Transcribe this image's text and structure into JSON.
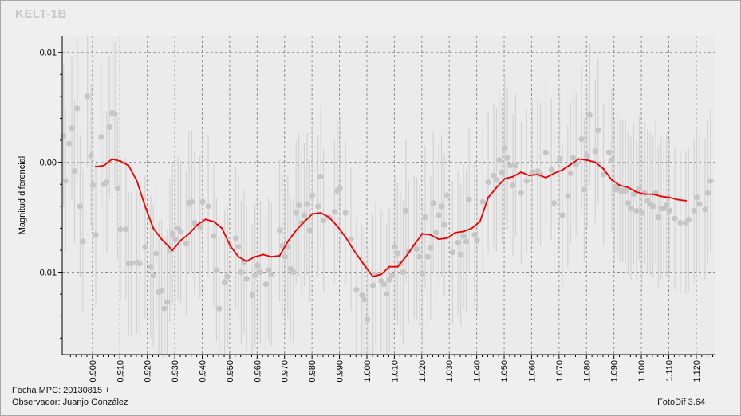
{
  "footer": {
    "date": "Fecha MPC: 20130815 +",
    "observer": "Observador: Juanjo González",
    "software": "FotoDif 3.64"
  },
  "colors": {
    "background": "#efefef",
    "plot_background": "#ebebeb",
    "grid": "#8c8c8c",
    "points": "#c6c6c6",
    "error_bars": "#d2d2d2",
    "fit_line": "#ee0000"
  },
  "chart_data": {
    "type": "scatter",
    "title": "KELT-1B",
    "xlabel": "",
    "ylabel": "Magnitud diferencial",
    "xlim": [
      0.889,
      1.127
    ],
    "ylim": [
      -0.0115,
      0.0175
    ],
    "y_inverted": true,
    "grid": true,
    "legend": "none",
    "x_ticks": [
      0.9,
      0.91,
      0.92,
      0.93,
      0.94,
      0.95,
      0.96,
      0.97,
      0.98,
      0.99,
      1.0,
      1.01,
      1.02,
      1.03,
      1.04,
      1.05,
      1.06,
      1.07,
      1.08,
      1.09,
      1.1,
      1.11,
      1.12
    ],
    "x_tick_labels": [
      "0.900",
      "0.910",
      "0.920",
      "0.930",
      "0.940",
      "0.950",
      "0.960",
      "0.970",
      "0.980",
      "0.990",
      "1.000",
      "1.010",
      "1.020",
      "1.030",
      "1.040",
      "1.050",
      "1.060",
      "1.070",
      "1.080",
      "1.090",
      "1.100",
      "1.110",
      "1.120"
    ],
    "y_ticks": [
      -0.01,
      0.0,
      0.01
    ],
    "y_tick_labels": [
      "-0.01",
      "0.00",
      "0.01"
    ],
    "series": [
      {
        "type": "scatter",
        "error": 0.0065,
        "points": [
          [
            0.8895,
            -0.0024
          ],
          [
            0.8902,
            0.0017
          ],
          [
            0.8915,
            -0.0017
          ],
          [
            0.8925,
            -0.0031
          ],
          [
            0.8935,
            0.0008
          ],
          [
            0.8945,
            -0.0049
          ],
          [
            0.8955,
            0.004
          ],
          [
            0.8965,
            0.0072
          ],
          [
            0.8982,
            -0.006
          ],
          [
            0.8995,
            -0.0006
          ],
          [
            0.9002,
            0.0021
          ],
          [
            0.9012,
            0.0066
          ],
          [
            0.9032,
            -0.0023
          ],
          [
            0.9042,
            0.002
          ],
          [
            0.9052,
            0.0018
          ],
          [
            0.9062,
            -0.0032
          ],
          [
            0.9072,
            -0.0045
          ],
          [
            0.9082,
            -0.0044
          ],
          [
            0.9092,
            0.0024
          ],
          [
            0.9102,
            0.0061
          ],
          [
            0.9122,
            0.0061
          ],
          [
            0.9132,
            0.0092
          ],
          [
            0.9142,
            0.0092
          ],
          [
            0.9162,
            0.0091
          ],
          [
            0.9172,
            0.0092
          ],
          [
            0.9192,
            0.0077
          ],
          [
            0.9212,
            0.0095
          ],
          [
            0.9222,
            0.0103
          ],
          [
            0.9232,
            0.0083
          ],
          [
            0.9242,
            0.0118
          ],
          [
            0.9252,
            0.0117
          ],
          [
            0.9262,
            0.0133
          ],
          [
            0.9272,
            0.0127
          ],
          [
            0.9282,
            0.008
          ],
          [
            0.9292,
            0.0065
          ],
          [
            0.9302,
            0.007
          ],
          [
            0.9312,
            0.006
          ],
          [
            0.9322,
            0.0063
          ],
          [
            0.9342,
            0.0074
          ],
          [
            0.9352,
            0.0037
          ],
          [
            0.9362,
            0.0036
          ],
          [
            0.9372,
            0.0055
          ],
          [
            0.9392,
            0.0059
          ],
          [
            0.9402,
            0.0036
          ],
          [
            0.9422,
            0.004
          ],
          [
            0.9442,
            0.0067
          ],
          [
            0.9452,
            0.0098
          ],
          [
            0.9462,
            0.0133
          ],
          [
            0.9482,
            0.0109
          ],
          [
            0.9492,
            0.0104
          ],
          [
            0.9522,
            0.0069
          ],
          [
            0.9532,
            0.0077
          ],
          [
            0.9542,
            0.01
          ],
          [
            0.9552,
            0.0091
          ],
          [
            0.9562,
            0.0106
          ],
          [
            0.9582,
            0.0121
          ],
          [
            0.9592,
            0.0103
          ],
          [
            0.9602,
            0.0094
          ],
          [
            0.9612,
            0.01
          ],
          [
            0.9632,
            0.0111
          ],
          [
            0.9642,
            0.0098
          ],
          [
            0.9652,
            0.0102
          ],
          [
            0.9682,
            0.0062
          ],
          [
            0.9692,
            0.0076
          ],
          [
            0.9702,
            0.0086
          ],
          [
            0.9712,
            0.0077
          ],
          [
            0.9722,
            0.0097
          ],
          [
            0.9732,
            0.01
          ],
          [
            0.9742,
            0.0046
          ],
          [
            0.9752,
            0.0039
          ],
          [
            0.9762,
            0.0055
          ],
          [
            0.9772,
            0.0048
          ],
          [
            0.9782,
            0.0038
          ],
          [
            0.9792,
            0.0062
          ],
          [
            0.9802,
            0.003
          ],
          [
            0.9822,
            0.004
          ],
          [
            0.9832,
            0.0013
          ],
          [
            0.9842,
            0.0053
          ],
          [
            0.9862,
            0.005
          ],
          [
            0.9882,
            0.0045
          ],
          [
            0.9892,
            0.0026
          ],
          [
            0.9902,
            0.0024
          ],
          [
            0.9922,
            0.0046
          ],
          [
            0.9942,
            0.007
          ],
          [
            0.9962,
            0.0116
          ],
          [
            0.9982,
            0.0121
          ],
          [
            0.9992,
            0.0125
          ],
          [
            1.0002,
            0.0143
          ],
          [
            1.0022,
            0.0112
          ],
          [
            1.0032,
            0.0102
          ],
          [
            1.0052,
            0.0108
          ],
          [
            1.0062,
            0.0111
          ],
          [
            1.0072,
            0.012
          ],
          [
            1.0082,
            0.0107
          ],
          [
            1.0092,
            0.0103
          ],
          [
            1.0102,
            0.0077
          ],
          [
            1.0112,
            0.0083
          ],
          [
            1.0122,
            0.0092
          ],
          [
            1.0132,
            0.01
          ],
          [
            1.0142,
            0.0044
          ],
          [
            1.0152,
            0.0081
          ],
          [
            1.0172,
            0.0077
          ],
          [
            1.0182,
            0.0079
          ],
          [
            1.0192,
            0.0086
          ],
          [
            1.0202,
            0.0101
          ],
          [
            1.0212,
            0.005
          ],
          [
            1.0222,
            0.0086
          ],
          [
            1.0232,
            0.0078
          ],
          [
            1.0242,
            0.0037
          ],
          [
            1.0252,
            0.0064
          ],
          [
            1.0262,
            0.0048
          ],
          [
            1.0272,
            0.004
          ],
          [
            1.0282,
            0.0057
          ],
          [
            1.0292,
            0.003
          ],
          [
            1.0312,
            0.0082
          ],
          [
            1.0332,
            0.0073
          ],
          [
            1.0342,
            0.0084
          ],
          [
            1.0352,
            0.0067
          ],
          [
            1.0362,
            0.0072
          ],
          [
            1.0372,
            0.0034
          ],
          [
            1.0392,
            0.0066
          ],
          [
            1.0402,
            0.0071
          ],
          [
            1.0422,
            0.0036
          ],
          [
            1.0442,
            0.0018
          ],
          [
            1.0462,
            0.0012
          ],
          [
            1.0472,
            0.0016
          ],
          [
            1.0482,
            -0.0002
          ],
          [
            1.0492,
            0.0009
          ],
          [
            1.0502,
            -0.0013
          ],
          [
            1.0512,
            -0.0004
          ],
          [
            1.0522,
            0.0003
          ],
          [
            1.0532,
            0.0021
          ],
          [
            1.0542,
            0.0003
          ],
          [
            1.0562,
            0.0028
          ],
          [
            1.0582,
            0.0017
          ],
          [
            1.0602,
            0.0009
          ],
          [
            1.0622,
            0.0008
          ],
          [
            1.0632,
            0.0011
          ],
          [
            1.0652,
            -0.0009
          ],
          [
            1.0672,
            0.0007
          ],
          [
            1.0682,
            0.0037
          ],
          [
            1.0702,
            -0.0003
          ],
          [
            1.0712,
            0.0048
          ],
          [
            1.0732,
            0.0031
          ],
          [
            1.0742,
            0.001
          ],
          [
            1.0752,
            -0.0004
          ],
          [
            1.0762,
            0.0002
          ],
          [
            1.0782,
            -0.0021
          ],
          [
            1.0792,
            0.0025
          ],
          [
            1.0802,
            -0.0006
          ],
          [
            1.0812,
            -0.0043
          ],
          [
            1.0832,
            -0.001
          ],
          [
            1.0842,
            -0.0029
          ],
          [
            1.0862,
            0.0011
          ],
          [
            1.0882,
            -0.0009
          ],
          [
            1.0892,
            -0.0002
          ],
          [
            1.0902,
            0.0025
          ],
          [
            1.0912,
            0.0022
          ],
          [
            1.0922,
            0.0026
          ],
          [
            1.0932,
            0.0026
          ],
          [
            1.0942,
            0.0026
          ],
          [
            1.0952,
            0.0037
          ],
          [
            1.0962,
            0.0042
          ],
          [
            1.0972,
            0.0029
          ],
          [
            1.0982,
            0.0044
          ],
          [
            1.0992,
            0.0024
          ],
          [
            1.1002,
            0.0046
          ],
          [
            1.1012,
            0.0028
          ],
          [
            1.1022,
            0.0035
          ],
          [
            1.1032,
            0.0038
          ],
          [
            1.1042,
            0.004
          ],
          [
            1.1052,
            0.0028
          ],
          [
            1.1062,
            0.005
          ],
          [
            1.1072,
            0.0042
          ],
          [
            1.1082,
            0.0042
          ],
          [
            1.1092,
            0.0039
          ],
          [
            1.1102,
            0.0044
          ],
          [
            1.1122,
            0.0051
          ],
          [
            1.1142,
            0.0055
          ],
          [
            1.1162,
            0.0055
          ],
          [
            1.1172,
            0.0052
          ],
          [
            1.1192,
            0.0044
          ],
          [
            1.1202,
            0.0032
          ],
          [
            1.1212,
            0.0038
          ],
          [
            1.1232,
            0.0043
          ],
          [
            1.1242,
            0.0028
          ],
          [
            1.1252,
            0.0017
          ]
        ]
      },
      {
        "type": "line",
        "points": [
          [
            0.9012,
            0.0004
          ],
          [
            0.9042,
            0.0003
          ],
          [
            0.9072,
            -0.0003
          ],
          [
            0.9102,
            -0.0001
          ],
          [
            0.9132,
            0.0003
          ],
          [
            0.9162,
            0.0017
          ],
          [
            0.9192,
            0.004
          ],
          [
            0.9222,
            0.006
          ],
          [
            0.9252,
            0.007
          ],
          [
            0.9292,
            0.008
          ],
          [
            0.9322,
            0.0071
          ],
          [
            0.9352,
            0.0065
          ],
          [
            0.9382,
            0.0057
          ],
          [
            0.9412,
            0.0052
          ],
          [
            0.9442,
            0.0054
          ],
          [
            0.9472,
            0.006
          ],
          [
            0.9502,
            0.0076
          ],
          [
            0.9532,
            0.0086
          ],
          [
            0.9562,
            0.009
          ],
          [
            0.9592,
            0.0086
          ],
          [
            0.9622,
            0.0084
          ],
          [
            0.9652,
            0.0086
          ],
          [
            0.9682,
            0.0085
          ],
          [
            0.9712,
            0.0072
          ],
          [
            0.9742,
            0.0062
          ],
          [
            0.9772,
            0.0054
          ],
          [
            0.9802,
            0.0047
          ],
          [
            0.9832,
            0.0046
          ],
          [
            0.9862,
            0.005
          ],
          [
            0.9892,
            0.0058
          ],
          [
            0.9922,
            0.0068
          ],
          [
            0.9952,
            0.008
          ],
          [
            0.9992,
            0.0094
          ],
          [
            1.0022,
            0.0104
          ],
          [
            1.0052,
            0.0102
          ],
          [
            1.0082,
            0.0095
          ],
          [
            1.0112,
            0.0095
          ],
          [
            1.0142,
            0.0086
          ],
          [
            1.0172,
            0.0075
          ],
          [
            1.0202,
            0.0065
          ],
          [
            1.0232,
            0.0066
          ],
          [
            1.0262,
            0.007
          ],
          [
            1.0292,
            0.0069
          ],
          [
            1.0322,
            0.0064
          ],
          [
            1.0352,
            0.0063
          ],
          [
            1.0382,
            0.006
          ],
          [
            1.0412,
            0.0054
          ],
          [
            1.0442,
            0.0032
          ],
          [
            1.0472,
            0.0023
          ],
          [
            1.0502,
            0.0015
          ],
          [
            1.0532,
            0.0013
          ],
          [
            1.0562,
            0.0009
          ],
          [
            1.0592,
            0.0012
          ],
          [
            1.0622,
            0.0011
          ],
          [
            1.0652,
            0.0014
          ],
          [
            1.0682,
            0.001
          ],
          [
            1.0712,
            0.0007
          ],
          [
            1.0742,
            0.0002
          ],
          [
            1.0772,
            -0.0003
          ],
          [
            1.0802,
            -0.0002
          ],
          [
            1.0832,
            0.0
          ],
          [
            1.0862,
            0.0006
          ],
          [
            1.0892,
            0.0016
          ],
          [
            1.0922,
            0.0021
          ],
          [
            1.0952,
            0.0023
          ],
          [
            1.0982,
            0.0027
          ],
          [
            1.1012,
            0.0029
          ],
          [
            1.1042,
            0.0029
          ],
          [
            1.1072,
            0.0031
          ],
          [
            1.1102,
            0.0032
          ],
          [
            1.1132,
            0.0034
          ],
          [
            1.1162,
            0.0035
          ]
        ]
      }
    ]
  }
}
